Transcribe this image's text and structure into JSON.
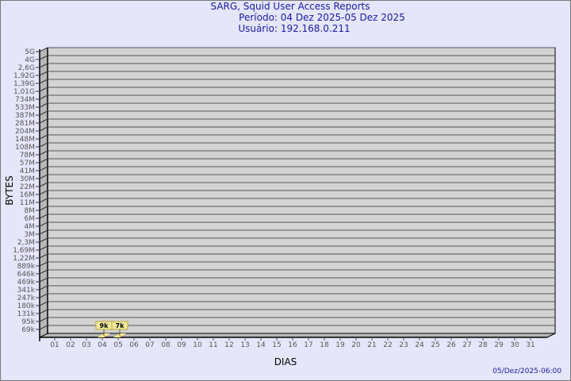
{
  "header": {
    "title": "SARG, Squid User Access Reports",
    "period": "Período: 04 Dez 2025-05 Dez 2025",
    "user": "Usuário: 192.168.0.211"
  },
  "footer": {
    "timestamp": "05/Dez/2025-06:00"
  },
  "colors": {
    "background": "#e6e6fa",
    "plot": "#d3d3d3",
    "bar": "#ffe680",
    "label_box": "#f0eaa0",
    "title": "#1a1aa0"
  },
  "chart_data": {
    "type": "bar",
    "title": "SARG, Squid User Access Reports",
    "xlabel": "DIAS",
    "ylabel": "BYTES",
    "y_scale": "log",
    "y_ticks": [
      "5G",
      "4G",
      "2,6G",
      "1,92G",
      "1,39G",
      "1,01G",
      "734M",
      "533M",
      "387M",
      "281M",
      "204M",
      "148M",
      "108M",
      "78M",
      "57M",
      "41M",
      "30M",
      "22M",
      "16M",
      "11M",
      "8M",
      "6M",
      "4M",
      "3M",
      "2,3M",
      "1,69M",
      "1,22M",
      "889k",
      "646k",
      "469k",
      "341k",
      "247k",
      "180k",
      "131k",
      "95k",
      "69k"
    ],
    "categories": [
      "01",
      "02",
      "03",
      "04",
      "05",
      "06",
      "07",
      "08",
      "09",
      "10",
      "11",
      "12",
      "13",
      "14",
      "15",
      "16",
      "17",
      "18",
      "19",
      "20",
      "21",
      "22",
      "23",
      "24",
      "25",
      "26",
      "27",
      "28",
      "29",
      "30",
      "31"
    ],
    "bars": [
      {
        "day": "04",
        "label": "9k"
      },
      {
        "day": "05",
        "label": "7k"
      }
    ],
    "grid": true
  }
}
